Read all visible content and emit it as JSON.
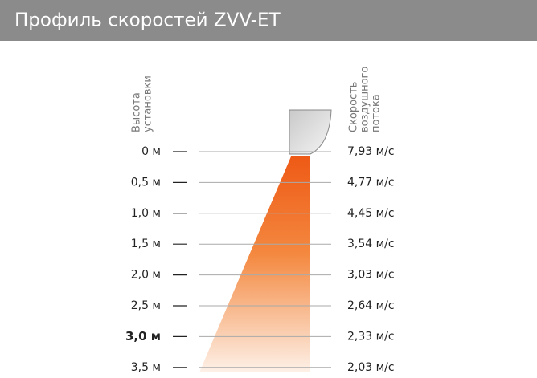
{
  "header": {
    "title": "Профиль скоростей ZVV-ET"
  },
  "left_label": [
    "Высота",
    "установки"
  ],
  "right_label": [
    "Скорость",
    "воздушного",
    "потока"
  ],
  "rows": [
    {
      "height": "0 м",
      "speed": "7,93 м/с"
    },
    {
      "height": "0,5 м",
      "speed": "4,77 м/с"
    },
    {
      "height": "1,0 м",
      "speed": "4,45 м/с"
    },
    {
      "height": "1,5 м",
      "speed": "3,54 м/с"
    },
    {
      "height": "2,0 м",
      "speed": "3,03 м/с"
    },
    {
      "height": "2,5 м",
      "speed": "2,64 м/с"
    },
    {
      "height": "3,0 м",
      "speed": "2,33 м/с"
    },
    {
      "height": "3,5 м",
      "speed": "2,03 м/с"
    }
  ]
}
